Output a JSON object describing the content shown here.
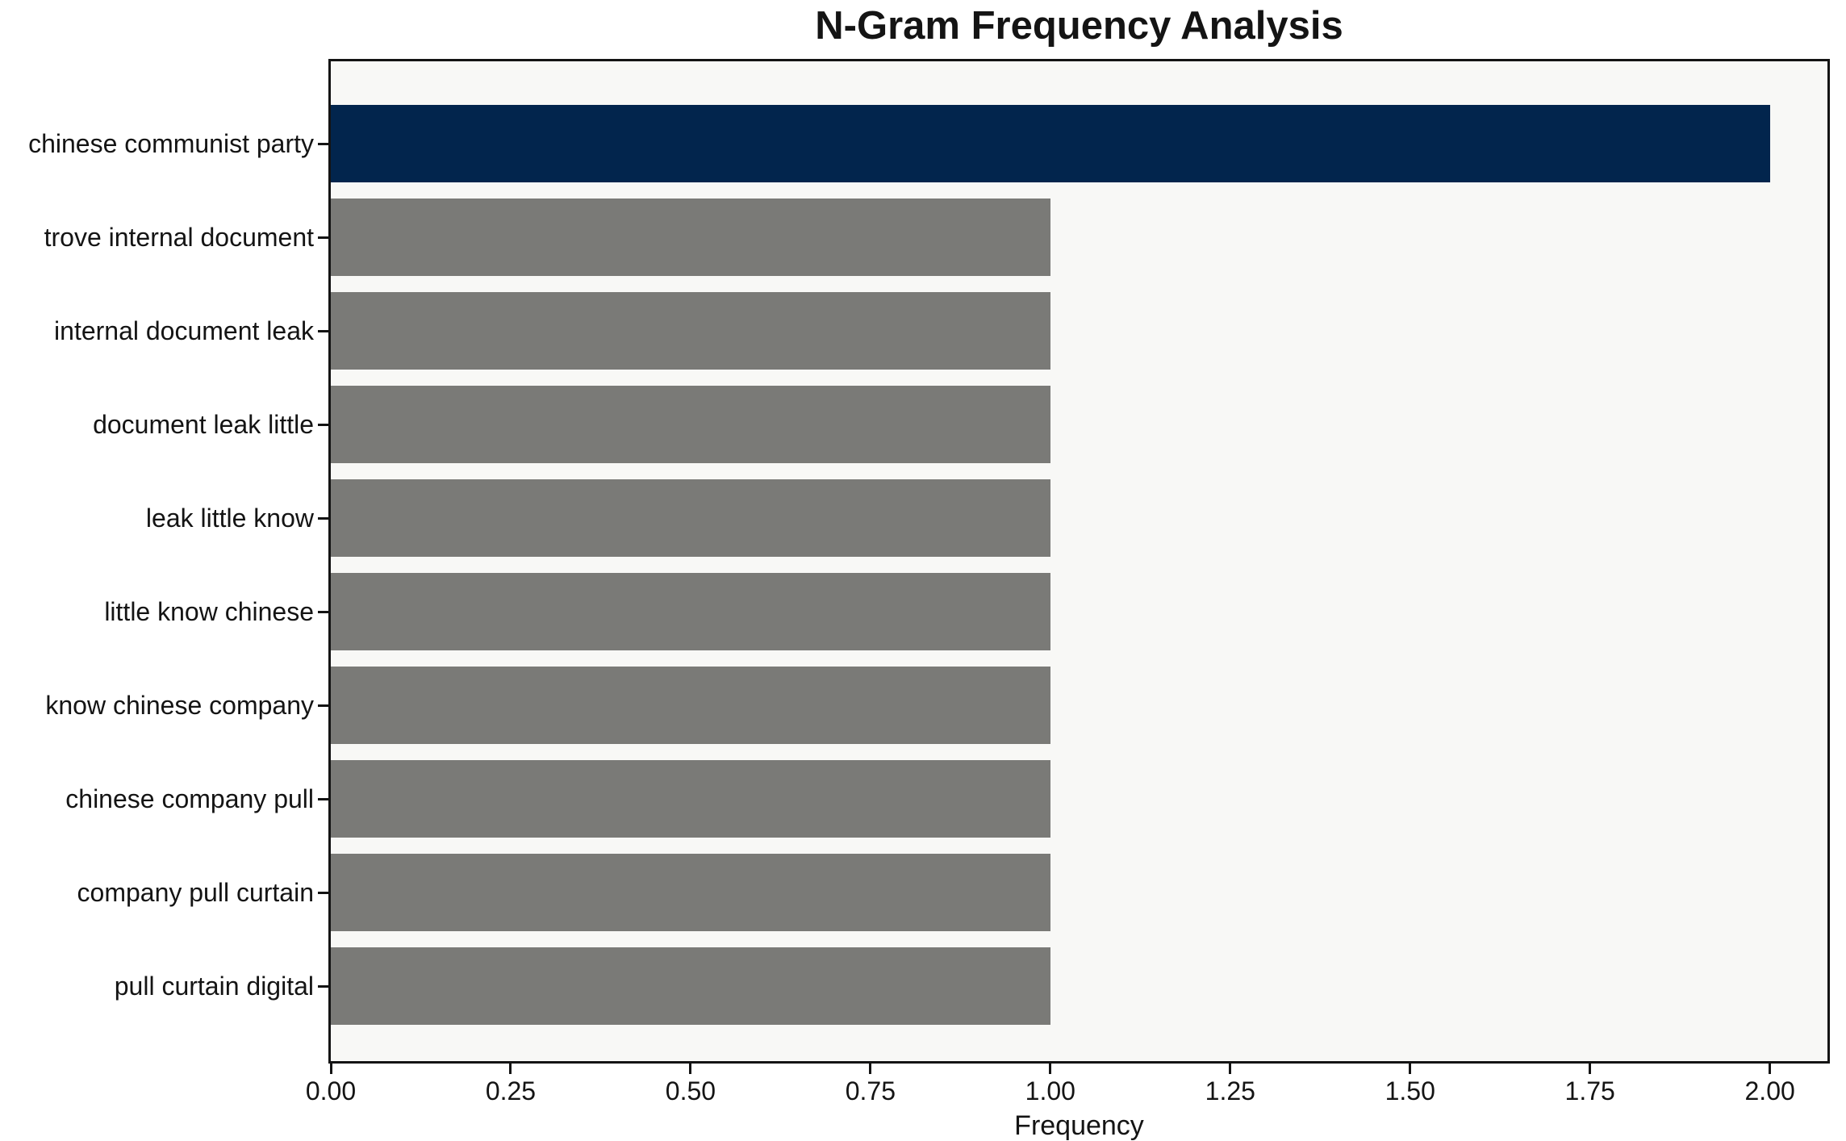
{
  "title": "N-Gram Frequency Analysis",
  "chart_data": {
    "type": "bar",
    "orientation": "horizontal",
    "title": "N-Gram Frequency Analysis",
    "categories": [
      "chinese communist party",
      "trove internal document",
      "internal document leak",
      "document leak little",
      "leak little know",
      "little know chinese",
      "know chinese company",
      "chinese company pull",
      "company pull curtain",
      "pull curtain digital"
    ],
    "values": [
      2,
      1,
      1,
      1,
      1,
      1,
      1,
      1,
      1,
      1
    ],
    "highlight_index": 0,
    "xlabel": "Frequency",
    "ylabel": "",
    "x_ticks": [
      "0.00",
      "0.25",
      "0.50",
      "0.75",
      "1.00",
      "1.25",
      "1.50",
      "1.75",
      "2.00"
    ],
    "xlim": [
      0,
      2.08
    ],
    "grid": false,
    "legend": null,
    "colors": {
      "highlight_bar": "#02254d",
      "default_bar": "#7a7a77",
      "plot_background": "#f8f8f6",
      "spine": "#141414",
      "figure_background": "#ffffff",
      "text": "#141414"
    }
  }
}
